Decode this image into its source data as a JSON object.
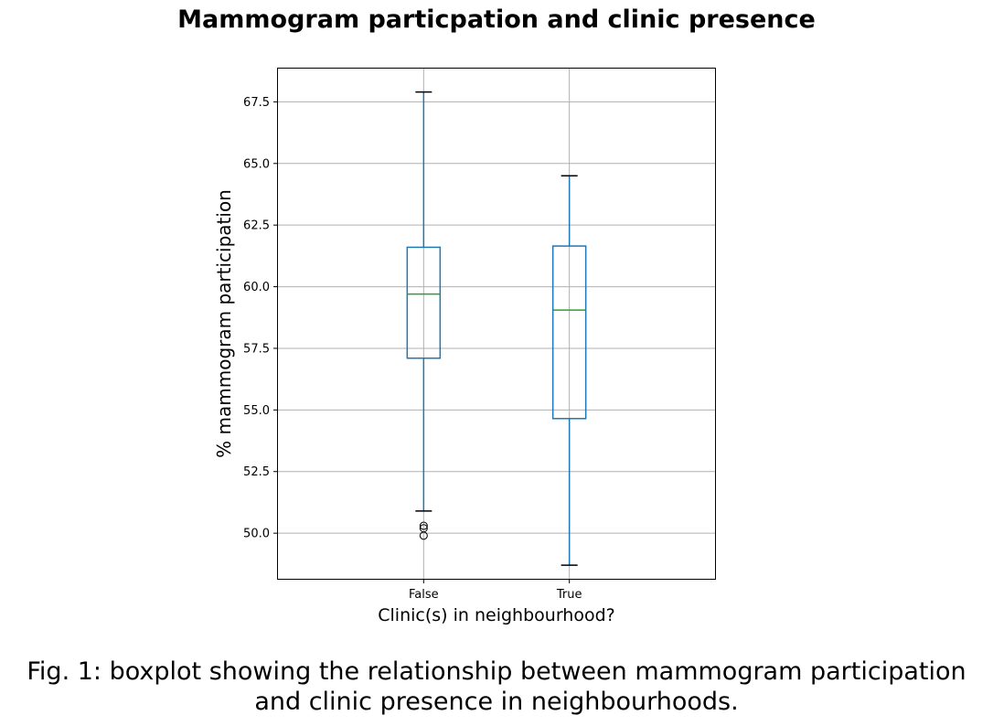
{
  "chart_data": {
    "type": "boxplot",
    "title": "Mammogram particpation and clinic presence",
    "xlabel": "Clinic(s) in neighbourhood?",
    "ylabel": "% mammogram participation",
    "categories": [
      "False",
      "True"
    ],
    "ylim": [
      48.15,
      68.85
    ],
    "yticks": [
      50.0,
      52.5,
      55.0,
      57.5,
      60.0,
      62.5,
      65.0,
      67.5
    ],
    "ytick_labels": [
      "50.0",
      "52.5",
      "55.0",
      "57.5",
      "60.0",
      "62.5",
      "65.0",
      "67.5"
    ],
    "grid": true,
    "colors": {
      "box": "#1f77b4",
      "median": "#2ca02c",
      "whisker_cap": "#000000",
      "grid": "#b0b0b0"
    },
    "boxes": [
      {
        "category": "False",
        "whisker_low": 50.9,
        "q1": 57.1,
        "median": 59.7,
        "q3": 61.6,
        "whisker_high": 67.9,
        "outliers": [
          50.3,
          50.2,
          49.9
        ]
      },
      {
        "category": "True",
        "whisker_low": 48.7,
        "q1": 54.65,
        "median": 59.05,
        "q3": 61.65,
        "whisker_high": 64.5,
        "outliers": []
      }
    ]
  },
  "caption": {
    "line1": "Fig. 1: boxplot showing the relationship between mammogram participation",
    "line2": "and clinic presence in neighbourhoods."
  }
}
